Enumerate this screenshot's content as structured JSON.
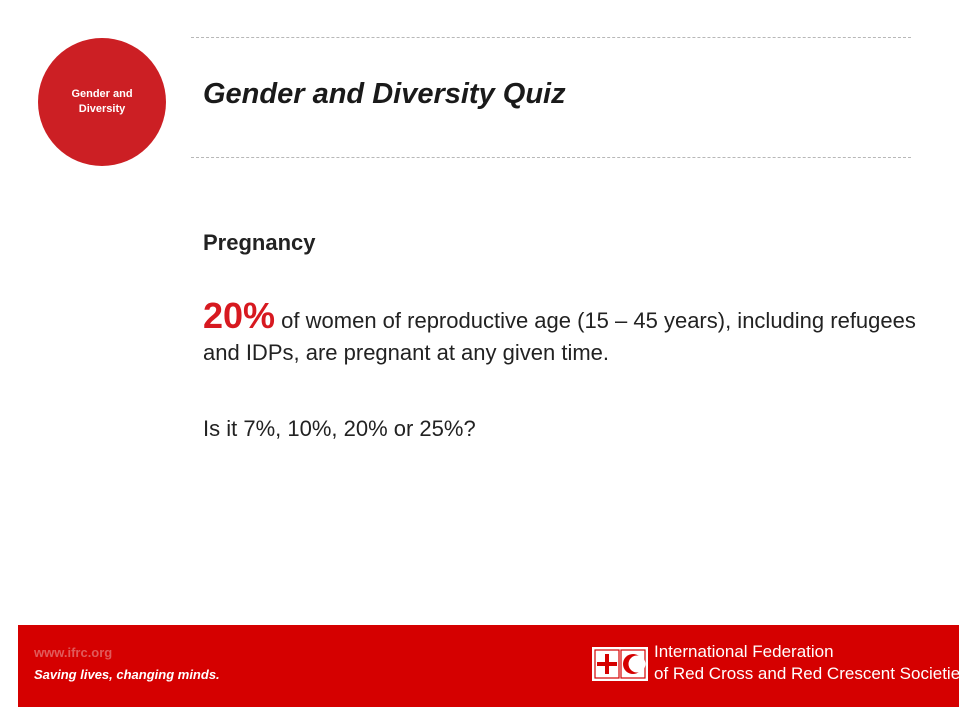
{
  "badge": {
    "label_line1": "Gender and",
    "label_line2": "Diversity"
  },
  "header": {
    "title": "Gender and Diversity Quiz"
  },
  "content": {
    "heading": "Pregnancy",
    "stat_value": "20%",
    "stat_text": " of women of reproductive age (15 – 45 years), including refugees and IDPs, are pregnant at any given time.",
    "question": "Is it 7%, 10%, 20% or 25%?"
  },
  "footer": {
    "url": "www.ifrc.org",
    "tagline": "Saving lives, changing minds.",
    "org_line1": "International Federation",
    "org_line2": "of Red Cross and Red Crescent Societies",
    "logo_icon": "red-cross-red-crescent-emblem"
  },
  "colors": {
    "brand_red": "#d50000",
    "badge_red": "#cc1f24",
    "stat_red": "#d71920"
  }
}
